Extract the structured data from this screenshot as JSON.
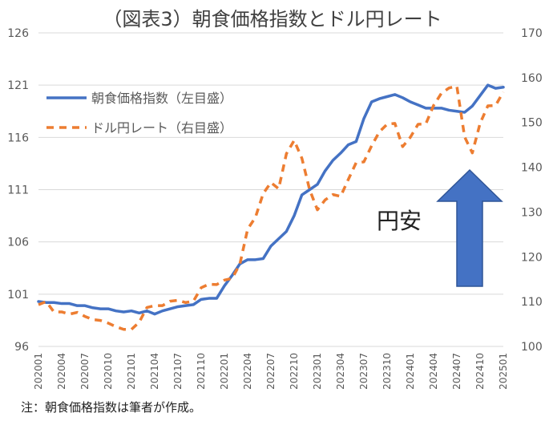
{
  "title": "（図表3）朝食価格指数とドル円レート",
  "note": "注：朝食価格指数は筆者が作成。",
  "annotation": "円安",
  "chart_data": {
    "type": "line",
    "x": [
      "202001",
      "202002",
      "202003",
      "202004",
      "202005",
      "202006",
      "202007",
      "202008",
      "202009",
      "202010",
      "202011",
      "202012",
      "202101",
      "202102",
      "202103",
      "202104",
      "202105",
      "202106",
      "202107",
      "202108",
      "202109",
      "202110",
      "202111",
      "202112",
      "202201",
      "202202",
      "202203",
      "202204",
      "202205",
      "202206",
      "202207",
      "202208",
      "202209",
      "202210",
      "202211",
      "202212",
      "202301",
      "202302",
      "202303",
      "202304",
      "202305",
      "202306",
      "202307",
      "202308",
      "202309",
      "202310",
      "202311",
      "202312",
      "202401",
      "202402",
      "202403",
      "202404",
      "202405",
      "202406",
      "202407",
      "202408",
      "202409",
      "202410",
      "202411",
      "202412",
      "202501"
    ],
    "x_tick_labels": [
      "202001",
      "202004",
      "202007",
      "202010",
      "202101",
      "202104",
      "202107",
      "202110",
      "202201",
      "202204",
      "202207",
      "202210",
      "202301",
      "202304",
      "202307",
      "202310",
      "202401",
      "202404",
      "202407",
      "202410",
      "202501"
    ],
    "series": [
      {
        "name": "朝食価格指数（左目盛）",
        "axis": "left",
        "color": "#4472C4",
        "style": "solid",
        "values": [
          100.3,
          100.2,
          100.2,
          100.1,
          100.1,
          99.9,
          99.9,
          99.7,
          99.6,
          99.6,
          99.4,
          99.3,
          99.4,
          99.2,
          99.4,
          99.1,
          99.4,
          99.6,
          99.8,
          99.9,
          100.0,
          100.5,
          100.6,
          100.6,
          101.8,
          102.8,
          103.9,
          104.3,
          104.3,
          104.4,
          105.6,
          106.3,
          107.0,
          108.5,
          110.5,
          111.0,
          111.5,
          112.8,
          113.8,
          114.5,
          115.3,
          115.6,
          117.8,
          119.4,
          119.7,
          119.9,
          120.1,
          119.8,
          119.4,
          119.1,
          118.8,
          118.8,
          118.8,
          118.6,
          118.5,
          118.4,
          119.0,
          120.0,
          121.0,
          120.7,
          120.8
        ]
      },
      {
        "name": "ドル円レート（右目盛）",
        "axis": "right",
        "color": "#ED7D31",
        "style": "dashed",
        "values": [
          109.3,
          110.0,
          107.7,
          107.7,
          107.2,
          107.6,
          106.7,
          106.0,
          105.8,
          105.2,
          104.4,
          103.8,
          103.8,
          105.4,
          108.7,
          109.1,
          109.1,
          110.1,
          110.3,
          109.8,
          110.1,
          113.1,
          113.9,
          113.8,
          114.8,
          115.2,
          118.4,
          126.2,
          128.8,
          134.1,
          136.6,
          135.2,
          143.0,
          146.0,
          142.0,
          135.0,
          130.5,
          132.7,
          133.9,
          133.5,
          137.3,
          141.0,
          141.2,
          144.8,
          147.9,
          149.6,
          149.8,
          144.6,
          146.7,
          149.6,
          149.7,
          153.8,
          156.5,
          157.7,
          158.1,
          146.8,
          143.2,
          149.8,
          153.7,
          153.8,
          156.8
        ]
      }
    ],
    "y_left": {
      "ylim": [
        96,
        126
      ],
      "ticks": [
        96,
        101,
        106,
        111,
        116,
        121,
        126
      ]
    },
    "y_right": {
      "ylim": [
        100,
        170
      ],
      "ticks": [
        100,
        110,
        120,
        130,
        140,
        150,
        160,
        170
      ]
    },
    "grid": "horizontal",
    "legend_placement": "top-left"
  }
}
